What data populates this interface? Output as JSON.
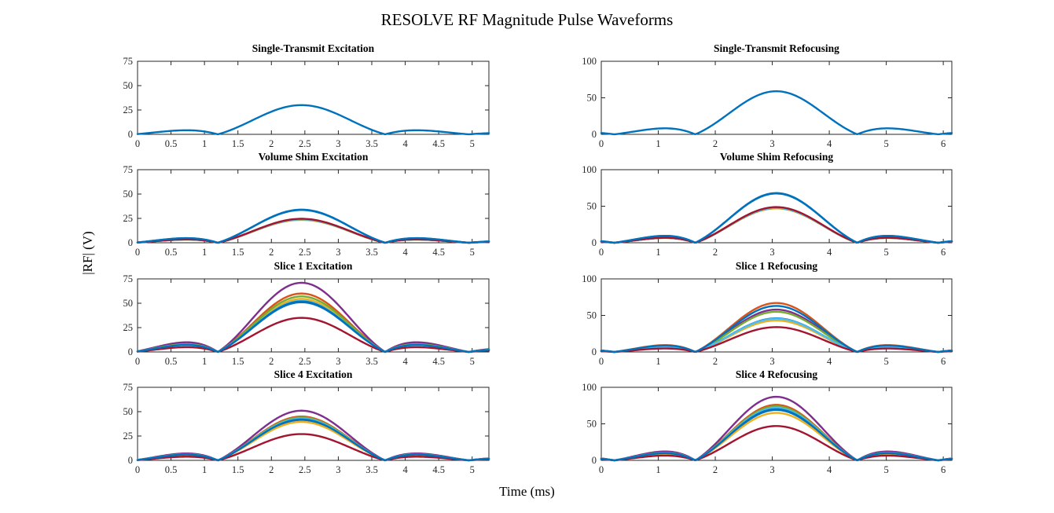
{
  "figure": {
    "title": "RESOLVE RF Magnitude Pulse Waveforms",
    "xlabel": "Time (ms)",
    "ylabel": "|RF| (V)",
    "background_color": "#FFFFFF",
    "axis_color": "#262626",
    "grid": "off",
    "legend": "none"
  },
  "palette": {
    "blue": "#0072BD",
    "orange": "#D95319",
    "yellow": "#EDB120",
    "purple": "#7E2F8E",
    "green": "#77AC30",
    "cyan": "#4DBEEE",
    "dark_red": "#A2142F"
  },
  "chart_data": [
    {
      "type": "line",
      "title": "Single-Transmit Excitation",
      "row": 0,
      "col": 0,
      "xlim": [
        0,
        5.25
      ],
      "ylim": [
        0,
        75
      ],
      "xticks": [
        0,
        0.5,
        1,
        1.5,
        2,
        2.5,
        3,
        3.5,
        4,
        4.5,
        5
      ],
      "yticks": [
        0,
        25,
        50,
        75
      ],
      "pulse_shape": {
        "center_ms": 2.45,
        "zero_half_width_ms": 1.25,
        "sidelobe_peak_fraction": 0.14
      },
      "series": [
        {
          "color": "blue",
          "peak_V": 30
        }
      ]
    },
    {
      "type": "line",
      "title": "Single-Transmit Refocusing",
      "row": 0,
      "col": 1,
      "xlim": [
        0,
        6.15
      ],
      "ylim": [
        0,
        100
      ],
      "xticks": [
        0,
        1,
        2,
        3,
        4,
        5,
        6
      ],
      "yticks": [
        0,
        50,
        100
      ],
      "pulse_shape": {
        "center_ms": 3.07,
        "zero_half_width_ms": 1.42,
        "sidelobe_peak_fraction": 0.15
      },
      "series": [
        {
          "color": "blue",
          "peak_V": 59
        }
      ]
    },
    {
      "type": "line",
      "title": "Volume Shim Excitation",
      "row": 1,
      "col": 0,
      "xlim": [
        0,
        5.25
      ],
      "ylim": [
        0,
        75
      ],
      "xticks": [
        0,
        0.5,
        1,
        1.5,
        2,
        2.5,
        3,
        3.5,
        4,
        4.5,
        5
      ],
      "yticks": [
        0,
        25,
        50,
        75
      ],
      "pulse_shape": {
        "center_ms": 2.45,
        "zero_half_width_ms": 1.25,
        "sidelobe_peak_fraction": 0.14
      },
      "series": [
        {
          "color": "blue",
          "peak_V": 33.6
        },
        {
          "color": "orange",
          "peak_V": 24.0
        },
        {
          "color": "yellow",
          "peak_V": 23.5
        },
        {
          "color": "purple",
          "peak_V": 24.2
        },
        {
          "color": "green",
          "peak_V": 23.8
        },
        {
          "color": "cyan",
          "peak_V": 24.1
        },
        {
          "color": "dark_red",
          "peak_V": 24.6
        },
        {
          "color": "blue",
          "peak_V": 34
        }
      ]
    },
    {
      "type": "line",
      "title": "Volume Shim Refocusing",
      "row": 1,
      "col": 1,
      "xlim": [
        0,
        6.15
      ],
      "ylim": [
        0,
        100
      ],
      "xticks": [
        0,
        1,
        2,
        3,
        4,
        5,
        6
      ],
      "yticks": [
        0,
        50,
        100
      ],
      "pulse_shape": {
        "center_ms": 3.07,
        "zero_half_width_ms": 1.42,
        "sidelobe_peak_fraction": 0.15
      },
      "series": [
        {
          "color": "blue",
          "peak_V": 67.4
        },
        {
          "color": "orange",
          "peak_V": 47.6
        },
        {
          "color": "yellow",
          "peak_V": 47.0
        },
        {
          "color": "purple",
          "peak_V": 48.0
        },
        {
          "color": "green",
          "peak_V": 47.4
        },
        {
          "color": "cyan",
          "peak_V": 47.8
        },
        {
          "color": "dark_red",
          "peak_V": 48.8
        },
        {
          "color": "blue",
          "peak_V": 68
        }
      ]
    },
    {
      "type": "line",
      "title": "Slice 1 Excitation",
      "row": 2,
      "col": 0,
      "xlim": [
        0,
        5.25
      ],
      "ylim": [
        0,
        75
      ],
      "xticks": [
        0,
        0.5,
        1,
        1.5,
        2,
        2.5,
        3,
        3.5,
        4,
        4.5,
        5
      ],
      "yticks": [
        0,
        25,
        50,
        75
      ],
      "pulse_shape": {
        "center_ms": 2.45,
        "zero_half_width_ms": 1.25,
        "sidelobe_peak_fraction": 0.14
      },
      "series": [
        {
          "color": "blue",
          "peak_V": 51
        },
        {
          "color": "orange",
          "peak_V": 60
        },
        {
          "color": "yellow",
          "peak_V": 54.5
        },
        {
          "color": "purple",
          "peak_V": 71
        },
        {
          "color": "green",
          "peak_V": 57
        },
        {
          "color": "cyan",
          "peak_V": 52.5
        },
        {
          "color": "dark_red",
          "peak_V": 35
        },
        {
          "color": "blue",
          "peak_V": 51.8
        }
      ]
    },
    {
      "type": "line",
      "title": "Slice 1 Refocusing",
      "row": 2,
      "col": 1,
      "xlim": [
        0,
        6.15
      ],
      "ylim": [
        0,
        100
      ],
      "xticks": [
        0,
        1,
        2,
        3,
        4,
        5,
        6
      ],
      "yticks": [
        0,
        50,
        100
      ],
      "pulse_shape": {
        "center_ms": 3.07,
        "zero_half_width_ms": 1.42,
        "sidelobe_peak_fraction": 0.15
      },
      "series": [
        {
          "color": "blue",
          "peak_V": 46
        },
        {
          "color": "orange",
          "peak_V": 67
        },
        {
          "color": "yellow",
          "peak_V": 43
        },
        {
          "color": "purple",
          "peak_V": 58
        },
        {
          "color": "green",
          "peak_V": 55
        },
        {
          "color": "cyan",
          "peak_V": 45.5
        },
        {
          "color": "dark_red",
          "peak_V": 34
        },
        {
          "color": "blue",
          "peak_V": 63
        }
      ]
    },
    {
      "type": "line",
      "title": "Slice 4 Excitation",
      "row": 3,
      "col": 0,
      "xlim": [
        0,
        5.25
      ],
      "ylim": [
        0,
        75
      ],
      "xticks": [
        0,
        0.5,
        1,
        1.5,
        2,
        2.5,
        3,
        3.5,
        4,
        4.5,
        5
      ],
      "yticks": [
        0,
        25,
        50,
        75
      ],
      "pulse_shape": {
        "center_ms": 2.45,
        "zero_half_width_ms": 1.25,
        "sidelobe_peak_fraction": 0.14
      },
      "series": [
        {
          "color": "blue",
          "peak_V": 41.5
        },
        {
          "color": "orange",
          "peak_V": 45
        },
        {
          "color": "yellow",
          "peak_V": 39.5
        },
        {
          "color": "purple",
          "peak_V": 51
        },
        {
          "color": "green",
          "peak_V": 44
        },
        {
          "color": "cyan",
          "peak_V": 43
        },
        {
          "color": "dark_red",
          "peak_V": 27
        },
        {
          "color": "blue",
          "peak_V": 42
        }
      ]
    },
    {
      "type": "line",
      "title": "Slice 4 Refocusing",
      "row": 3,
      "col": 1,
      "xlim": [
        0,
        6.15
      ],
      "ylim": [
        0,
        100
      ],
      "xticks": [
        0,
        1,
        2,
        3,
        4,
        5,
        6
      ],
      "yticks": [
        0,
        50,
        100
      ],
      "pulse_shape": {
        "center_ms": 3.07,
        "zero_half_width_ms": 1.42,
        "sidelobe_peak_fraction": 0.15
      },
      "series": [
        {
          "color": "blue",
          "peak_V": 69
        },
        {
          "color": "orange",
          "peak_V": 76
        },
        {
          "color": "yellow",
          "peak_V": 65
        },
        {
          "color": "purple",
          "peak_V": 87
        },
        {
          "color": "green",
          "peak_V": 74
        },
        {
          "color": "cyan",
          "peak_V": 72
        },
        {
          "color": "dark_red",
          "peak_V": 47
        },
        {
          "color": "blue",
          "peak_V": 70
        }
      ]
    }
  ]
}
